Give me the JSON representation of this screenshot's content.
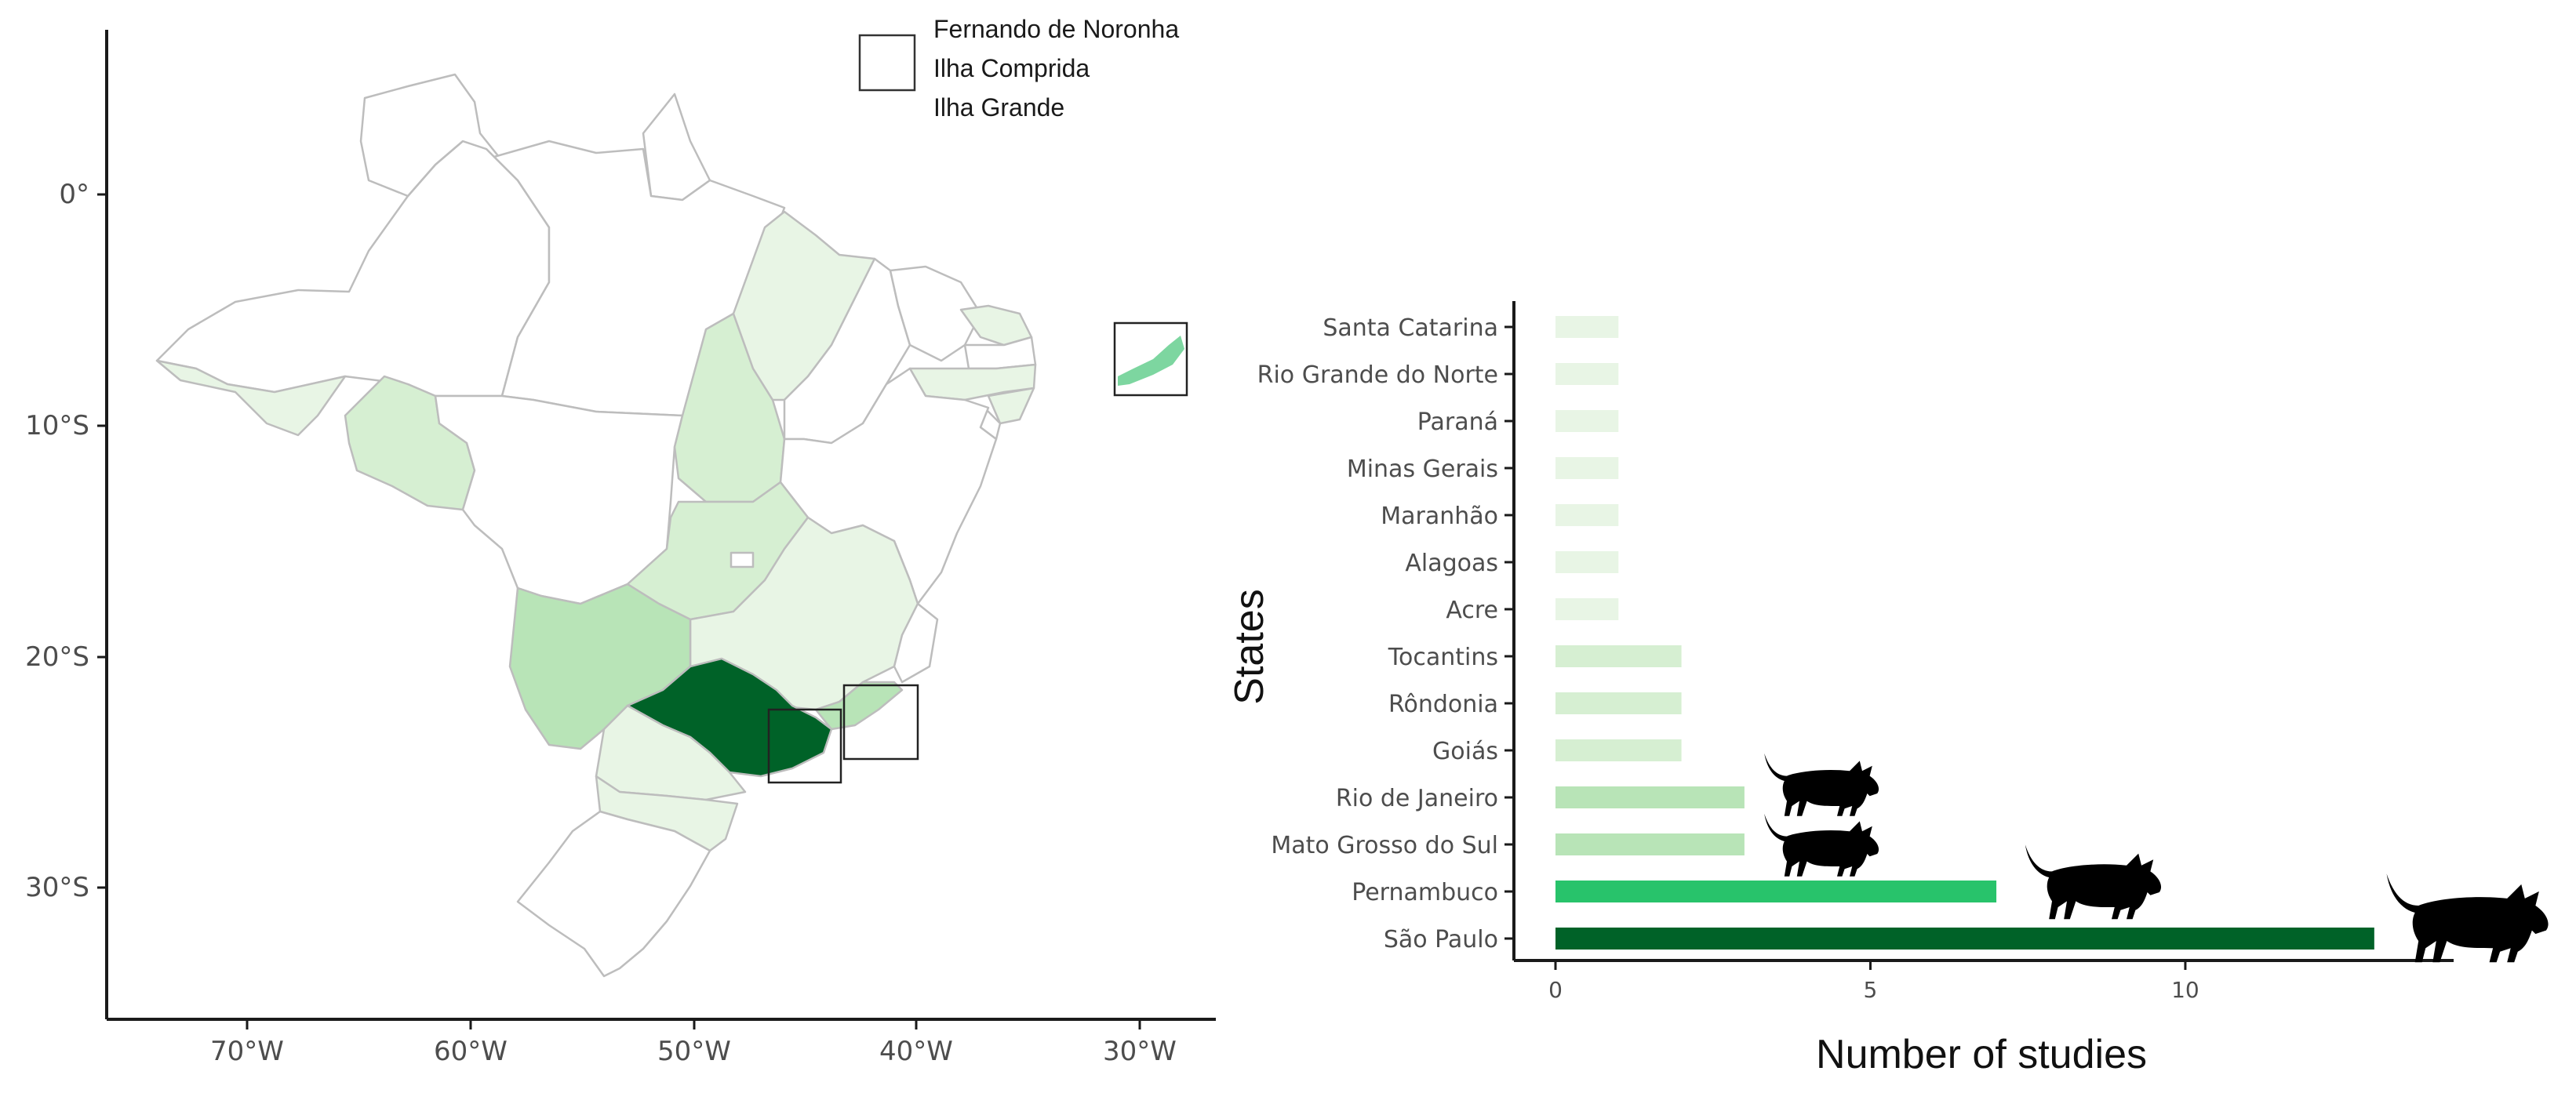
{
  "colors": {
    "very_light": "#e8f5e5",
    "light": "#d6efd2",
    "medium_light": "#b8e4b7",
    "medium": "#28c36b",
    "dark": "#006228",
    "border": "#c2c2c2",
    "axis": "#1a1a1a"
  },
  "map": {
    "lat_ticks": [
      "0°",
      "10°S",
      "20°S",
      "30°S"
    ],
    "lon_ticks": [
      "70°W",
      "60°W",
      "50°W",
      "40°W",
      "30°W"
    ],
    "legend_labels": [
      "Fernando de Noronha",
      "Ilha Comprida",
      "Ilha Grande"
    ]
  },
  "chart_data": {
    "type": "bar",
    "orientation": "horizontal",
    "ylabel": "States",
    "xlabel": "Number of studies",
    "categories": [
      "Santa Catarina",
      "Rio Grande do Norte",
      "Paraná",
      "Minas Gerais",
      "Maranhão",
      "Alagoas",
      "Acre",
      "Tocantins",
      "Rôndonia",
      "Goiás",
      "Rio de Janeiro",
      "Mato Grosso do Sul",
      "Pernambuco",
      "São Paulo"
    ],
    "values": [
      1,
      1,
      1,
      1,
      1,
      1,
      1,
      2,
      2,
      2,
      3,
      3,
      7,
      13
    ],
    "xlim": [
      0,
      13.6
    ],
    "xticks": [
      "0",
      "5",
      "10"
    ],
    "xtick_values": [
      0,
      5,
      10
    ],
    "grid": false
  }
}
